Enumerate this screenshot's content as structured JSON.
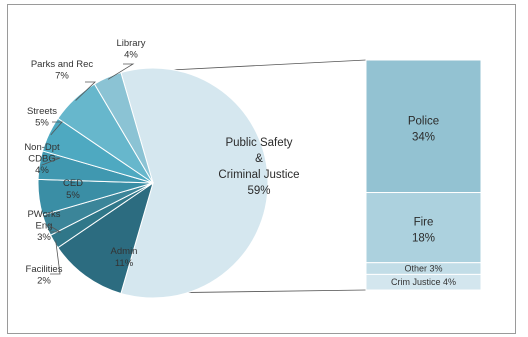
{
  "chart_data": {
    "type": "pie",
    "pie": {
      "slices": [
        {
          "name": "Public Safety & Criminal Justice",
          "label_lines": [
            "Public Safety",
            "&",
            "Criminal Justice"
          ],
          "pct": "59%",
          "value": 59,
          "color": "#d5e7ef"
        },
        {
          "name": "Admin",
          "label_lines": [
            "Admin"
          ],
          "pct": "11%",
          "value": 11,
          "color": "#2c6c80"
        },
        {
          "name": "Facilities",
          "label_lines": [
            "Facilities"
          ],
          "pct": "2%",
          "value": 2,
          "color": "#307789"
        },
        {
          "name": "PWorks Eng",
          "label_lines": [
            "PWorks",
            "Eng"
          ],
          "pct": "3%",
          "value": 3,
          "color": "#3b8599"
        },
        {
          "name": "CED",
          "label_lines": [
            "CED"
          ],
          "pct": "5%",
          "value": 5,
          "color": "#3a8ea5"
        },
        {
          "name": "Non-Dpt CDBG",
          "label_lines": [
            "Non-Dpt",
            "CDBG"
          ],
          "pct": "4%",
          "value": 4,
          "color": "#4098b0"
        },
        {
          "name": "Streets",
          "label_lines": [
            "Streets"
          ],
          "pct": "5%",
          "value": 5,
          "color": "#4ea9c1"
        },
        {
          "name": "Parks and Rec",
          "label_lines": [
            "Parks and Rec"
          ],
          "pct": "7%",
          "value": 7,
          "color": "#67b7cc"
        },
        {
          "name": "Library",
          "label_lines": [
            "Library"
          ],
          "pct": "4%",
          "value": 4,
          "color": "#8bc3d4"
        }
      ]
    },
    "breakdown": {
      "parent": "Public Safety & Criminal Justice",
      "segments": [
        {
          "name": "Police",
          "pct": "34%",
          "value": 34,
          "color": "#93c2d2"
        },
        {
          "name": "Fire",
          "pct": "18%",
          "value": 18,
          "color": "#acd1de"
        },
        {
          "name": "Other",
          "pct": "3%",
          "value": 3,
          "color": "#c2dde7"
        },
        {
          "name": "Crim Justice",
          "pct": "4%",
          "value": 4,
          "color": "#d3e6ee"
        }
      ]
    }
  }
}
